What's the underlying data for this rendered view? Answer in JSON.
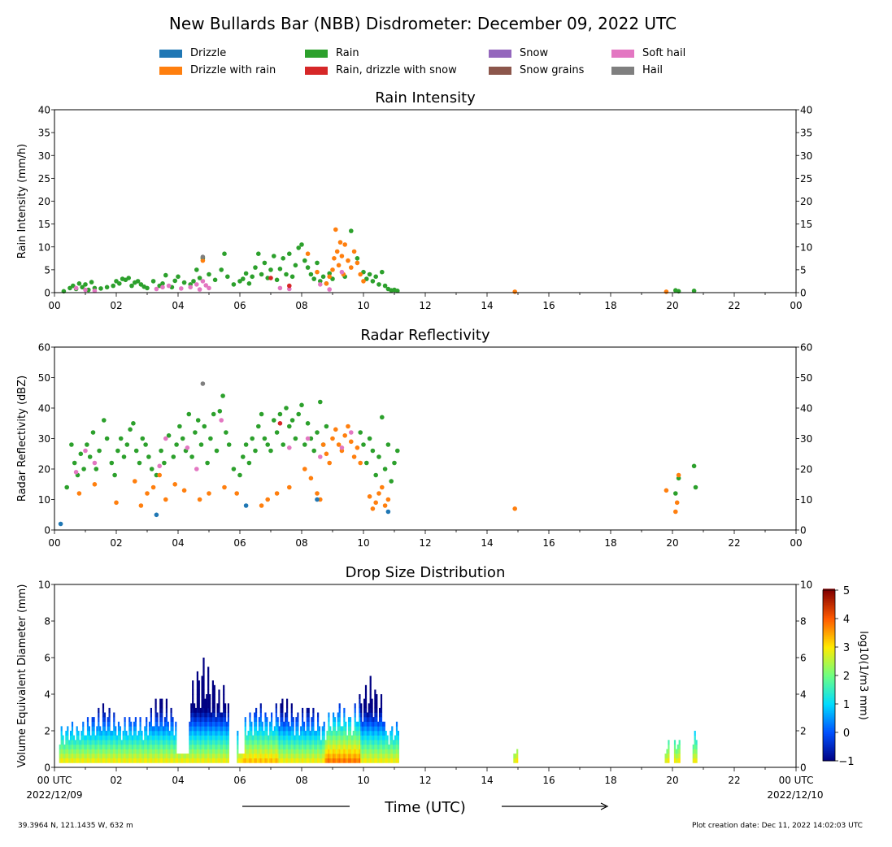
{
  "title": "New Bullards Bar (NBB) Disdrometer: December 09, 2022 UTC",
  "legend": [
    {
      "label": "Drizzle",
      "color": "#1f77b4"
    },
    {
      "label": "Drizzle with rain",
      "color": "#ff7f0e"
    },
    {
      "label": "Rain",
      "color": "#2ca02c"
    },
    {
      "label": "Rain, drizzle with snow",
      "color": "#d62728"
    },
    {
      "label": "Snow",
      "color": "#9467bd"
    },
    {
      "label": "Snow grains",
      "color": "#8c564b"
    },
    {
      "label": "Soft hail",
      "color": "#e377c2"
    },
    {
      "label": "Hail",
      "color": "#7f7f7f"
    }
  ],
  "xlabel": "Time (UTC)",
  "x_ticks": [
    "00",
    "02",
    "04",
    "06",
    "08",
    "10",
    "12",
    "14",
    "16",
    "18",
    "20",
    "22",
    "00"
  ],
  "x_ticks_bottom": [
    "00 UTC",
    "02",
    "04",
    "06",
    "08",
    "10",
    "12",
    "14",
    "16",
    "18",
    "20",
    "22",
    "00 UTC"
  ],
  "start_date": "2022/12/09",
  "end_date": "2022/12/10",
  "location": "39.3964 N, 121.1435 W, 632 m",
  "creation": "Plot creation date: Dec 11, 2022 14:02:03 UTC",
  "chart_data": [
    {
      "type": "scatter",
      "title": "Rain Intensity",
      "ylabel": "Rain Intensity (mm/h)",
      "xlim": [
        0,
        24
      ],
      "ylim": [
        0,
        40
      ],
      "yticks": [
        0,
        5,
        10,
        15,
        20,
        25,
        30,
        35,
        40
      ],
      "series": [
        {
          "name": "Rain",
          "color": "#2ca02c",
          "x": [
            0.3,
            0.5,
            0.6,
            0.7,
            0.8,
            0.9,
            1.0,
            1.1,
            1.2,
            1.3,
            1.5,
            1.7,
            1.9,
            2.0,
            2.1,
            2.2,
            2.3,
            2.4,
            2.5,
            2.6,
            2.7,
            2.8,
            2.9,
            3.0,
            3.2,
            3.4,
            3.5,
            3.6,
            3.8,
            3.9,
            4.0,
            4.2,
            4.4,
            4.5,
            4.6,
            4.7,
            4.8,
            5.0,
            5.2,
            5.4,
            5.5,
            5.6,
            5.8,
            6.0,
            6.1,
            6.2,
            6.3,
            6.4,
            6.5,
            6.6,
            6.7,
            6.8,
            6.9,
            7.0,
            7.1,
            7.2,
            7.3,
            7.4,
            7.5,
            7.6,
            7.7,
            7.8,
            7.9,
            8.0,
            8.1,
            8.2,
            8.3,
            8.4,
            8.5,
            8.6,
            8.7,
            8.8,
            8.9,
            9.0,
            9.4,
            9.6,
            9.8,
            10.0,
            10.1,
            10.2,
            10.3,
            10.4,
            10.5,
            10.6,
            10.7,
            10.8,
            10.9,
            11.0,
            11.1,
            20.1,
            20.2,
            20.7
          ],
          "y": [
            0.3,
            1.0,
            1.5,
            0.8,
            2.0,
            1.2,
            1.8,
            0.6,
            2.3,
            1.0,
            0.9,
            1.2,
            1.5,
            2.5,
            2.0,
            3.0,
            2.8,
            3.2,
            1.5,
            2.2,
            2.5,
            1.8,
            1.3,
            1.0,
            2.5,
            1.5,
            2.0,
            3.8,
            1.2,
            2.6,
            3.5,
            2.2,
            1.8,
            2.5,
            5.0,
            3.2,
            7.5,
            4.0,
            2.8,
            5.0,
            8.5,
            3.5,
            1.8,
            2.5,
            3.0,
            4.2,
            2.0,
            3.5,
            5.5,
            8.5,
            4.0,
            6.5,
            3.2,
            5.0,
            8.0,
            2.8,
            5.2,
            7.5,
            4.0,
            8.5,
            3.5,
            6.0,
            9.8,
            10.5,
            7.0,
            5.5,
            4.0,
            3.0,
            6.5,
            2.5,
            3.5,
            2.0,
            4.2,
            3.0,
            3.5,
            13.5,
            7.5,
            4.5,
            3.0,
            4.0,
            2.5,
            3.5,
            1.8,
            4.5,
            1.5,
            0.8,
            0.5,
            0.6,
            0.4,
            0.5,
            0.3,
            0.4
          ]
        },
        {
          "name": "Drizzle with rain",
          "color": "#ff7f0e",
          "x": [
            4.8,
            8.2,
            8.5,
            8.8,
            8.9,
            9.0,
            9.05,
            9.1,
            9.15,
            9.2,
            9.25,
            9.3,
            9.35,
            9.4,
            9.5,
            9.6,
            9.7,
            9.8,
            9.9,
            10.0,
            14.9,
            19.8
          ],
          "y": [
            7.0,
            8.5,
            4.5,
            2.0,
            3.5,
            5.0,
            7.5,
            13.8,
            9.0,
            6.0,
            11.0,
            8.0,
            4.0,
            10.5,
            7.0,
            5.5,
            9.0,
            6.5,
            4.0,
            2.5,
            0.2,
            0.2
          ]
        },
        {
          "name": "Soft hail",
          "color": "#e377c2",
          "x": [
            0.7,
            1.0,
            1.3,
            3.3,
            3.5,
            3.7,
            4.1,
            4.4,
            4.6,
            4.7,
            4.8,
            4.9,
            5.0,
            7.3,
            7.6,
            8.6,
            8.9,
            9.3
          ],
          "y": [
            1.0,
            0.6,
            0.4,
            0.8,
            1.2,
            1.5,
            0.9,
            1.2,
            1.8,
            0.7,
            2.5,
            1.6,
            1.0,
            1.0,
            0.8,
            1.8,
            0.7,
            4.5
          ]
        },
        {
          "name": "Hail",
          "color": "#7f7f7f",
          "x": [
            4.8
          ],
          "y": [
            7.8
          ]
        },
        {
          "name": "Rain, drizzle with snow",
          "color": "#d62728",
          "x": [
            7.0,
            7.6
          ],
          "y": [
            3.2,
            1.5
          ]
        }
      ]
    },
    {
      "type": "scatter",
      "title": "Radar Reflectivity",
      "ylabel": "Radar Reflectivity (dBZ)",
      "xlim": [
        0,
        24
      ],
      "ylim": [
        0,
        60
      ],
      "yticks": [
        0,
        10,
        20,
        30,
        40,
        50,
        60
      ],
      "series": [
        {
          "name": "Rain",
          "color": "#2ca02c",
          "x": [
            0.4,
            0.55,
            0.65,
            0.75,
            0.85,
            0.95,
            1.05,
            1.15,
            1.25,
            1.35,
            1.45,
            1.6,
            1.7,
            1.85,
            1.95,
            2.05,
            2.15,
            2.25,
            2.35,
            2.45,
            2.55,
            2.65,
            2.75,
            2.85,
            2.95,
            3.05,
            3.15,
            3.3,
            3.45,
            3.55,
            3.7,
            3.85,
            3.95,
            4.05,
            4.15,
            4.25,
            4.35,
            4.45,
            4.55,
            4.65,
            4.75,
            4.85,
            4.95,
            5.05,
            5.15,
            5.25,
            5.35,
            5.45,
            5.55,
            5.65,
            5.8,
            6.0,
            6.1,
            6.2,
            6.3,
            6.4,
            6.5,
            6.6,
            6.7,
            6.8,
            6.9,
            7.0,
            7.1,
            7.2,
            7.3,
            7.4,
            7.5,
            7.6,
            7.7,
            7.8,
            7.9,
            8.0,
            8.1,
            8.2,
            8.3,
            8.4,
            8.5,
            8.6,
            8.7,
            8.8,
            9.9,
            10.0,
            10.1,
            10.2,
            10.3,
            10.4,
            10.5,
            10.6,
            10.7,
            10.8,
            10.9,
            11.0,
            11.1,
            20.1,
            20.2,
            20.7,
            20.75
          ],
          "y": [
            14,
            28,
            22,
            18,
            25,
            20,
            28,
            24,
            32,
            20,
            26,
            36,
            30,
            22,
            18,
            26,
            30,
            24,
            28,
            33,
            35,
            26,
            22,
            30,
            28,
            24,
            20,
            18,
            26,
            22,
            31,
            24,
            28,
            34,
            30,
            26,
            38,
            24,
            32,
            36,
            28,
            34,
            22,
            30,
            38,
            26,
            39,
            44,
            32,
            28,
            20,
            18,
            24,
            28,
            22,
            30,
            26,
            34,
            38,
            30,
            28,
            26,
            36,
            32,
            38,
            28,
            40,
            34,
            36,
            30,
            38,
            41,
            28,
            35,
            30,
            26,
            32,
            42,
            28,
            34,
            32,
            28,
            22,
            30,
            26,
            18,
            24,
            37,
            20,
            28,
            16,
            22,
            26,
            12,
            17,
            21,
            14
          ]
        },
        {
          "name": "Drizzle with rain",
          "color": "#ff7f0e",
          "x": [
            0.8,
            1.3,
            2.0,
            2.6,
            2.8,
            3.0,
            3.2,
            3.4,
            3.6,
            3.9,
            4.2,
            4.7,
            5.0,
            5.5,
            5.9,
            6.7,
            6.9,
            7.2,
            7.6,
            8.1,
            8.3,
            8.5,
            8.6,
            8.7,
            8.8,
            8.9,
            9.0,
            9.1,
            9.2,
            9.3,
            9.4,
            9.5,
            9.6,
            9.7,
            9.8,
            9.9,
            10.2,
            10.3,
            10.4,
            10.5,
            10.6,
            10.7,
            10.8,
            14.9,
            19.8,
            20.1,
            20.15,
            20.2
          ],
          "y": [
            12,
            15,
            9,
            16,
            8,
            12,
            14,
            18,
            10,
            15,
            13,
            10,
            12,
            14,
            12,
            8,
            10,
            12,
            14,
            20,
            17,
            12,
            10,
            28,
            25,
            22,
            30,
            33,
            28,
            26,
            31,
            34,
            29,
            24,
            27,
            22,
            11,
            7,
            9,
            12,
            14,
            8,
            10,
            7,
            13,
            6,
            9,
            18
          ]
        },
        {
          "name": "Soft hail",
          "color": "#e377c2",
          "x": [
            0.7,
            1.0,
            1.3,
            3.4,
            3.6,
            4.3,
            4.6,
            5.4,
            7.6,
            8.2,
            8.6,
            9.3,
            9.6
          ],
          "y": [
            19,
            26,
            22,
            21,
            30,
            27,
            20,
            36,
            27,
            30,
            24,
            27,
            32
          ]
        },
        {
          "name": "Drizzle",
          "color": "#1f77b4",
          "x": [
            0.2,
            3.3,
            6.2,
            8.5,
            10.8
          ],
          "y": [
            2,
            5,
            8,
            10,
            6
          ]
        },
        {
          "name": "Hail",
          "color": "#7f7f7f",
          "x": [
            4.8
          ],
          "y": [
            48
          ]
        },
        {
          "name": "Rain, drizzle with snow",
          "color": "#d62728",
          "x": [
            7.3
          ],
          "y": [
            35
          ]
        }
      ]
    },
    {
      "type": "heatmap",
      "title": "Drop Size Distribution",
      "ylabel": "Volume Equivalent Diameter (mm)",
      "xlim": [
        0,
        24
      ],
      "ylim": [
        0,
        10
      ],
      "yticks": [
        0,
        2,
        4,
        6,
        8,
        10
      ],
      "colorbar": {
        "label": "log10(1/m3 mm)",
        "range": [
          -1,
          5
        ],
        "ticks": [
          -1,
          0,
          1,
          2,
          3,
          4,
          5
        ]
      },
      "max_diameter_by_hour": [
        {
          "t": 0.2,
          "max_d": 1.0
        },
        {
          "t": 0.5,
          "max_d": 2.5
        },
        {
          "t": 1.2,
          "max_d": 3.0
        },
        {
          "t": 1.6,
          "max_d": 3.5
        },
        {
          "t": 2.5,
          "max_d": 3.0
        },
        {
          "t": 3.4,
          "max_d": 4.0
        },
        {
          "t": 4.8,
          "max_d": 6.0
        },
        {
          "t": 5.4,
          "max_d": 4.5
        },
        {
          "t": 6.6,
          "max_d": 3.5
        },
        {
          "t": 7.4,
          "max_d": 4.0
        },
        {
          "t": 8.2,
          "max_d": 3.5
        },
        {
          "t": 9.2,
          "max_d": 3.5
        },
        {
          "t": 10.2,
          "max_d": 5.0
        },
        {
          "t": 11.1,
          "max_d": 2.5
        },
        {
          "t": 14.9,
          "max_d": 0.8
        },
        {
          "t": 20.1,
          "max_d": 1.5
        },
        {
          "t": 20.7,
          "max_d": 1.8
        }
      ]
    }
  ]
}
